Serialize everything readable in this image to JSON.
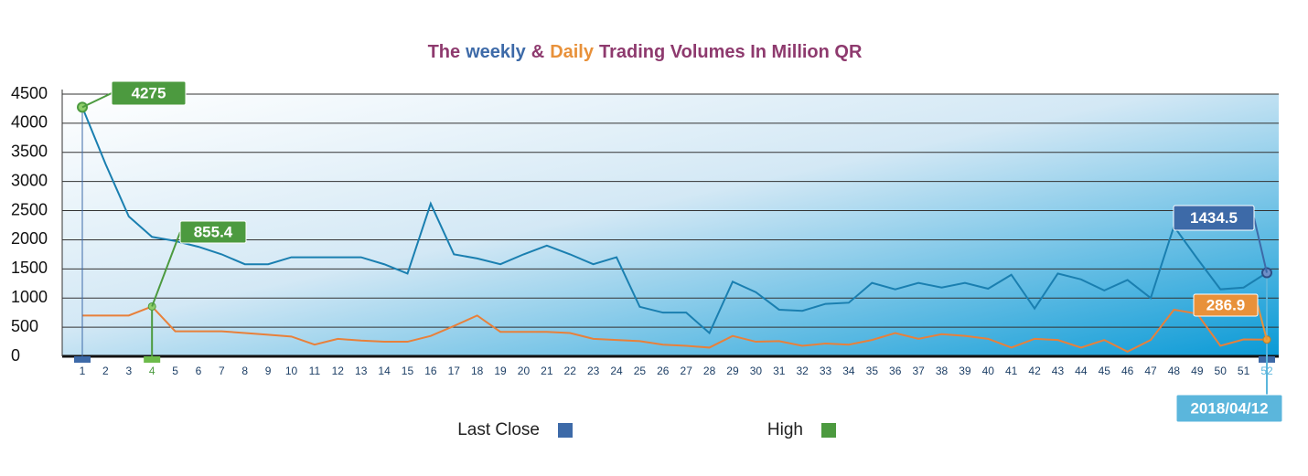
{
  "chart_data": {
    "type": "line",
    "title_parts": [
      {
        "text": "The",
        "color": "#8e3a6e"
      },
      {
        "text": "weekly",
        "color": "#3d6aa8"
      },
      {
        "text": "&",
        "color": "#8e3a6e"
      },
      {
        "text": "Daily",
        "color": "#e8913a"
      },
      {
        "text": "Trading Volumes In Million QR",
        "color": "#8e3a6e"
      }
    ],
    "categories": [
      "1",
      "2",
      "3",
      "4",
      "5",
      "6",
      "7",
      "8",
      "9",
      "10",
      "11",
      "12",
      "13",
      "14",
      "15",
      "16",
      "17",
      "18",
      "19",
      "20",
      "21",
      "22",
      "23",
      "24",
      "25",
      "26",
      "27",
      "28",
      "29",
      "30",
      "31",
      "32",
      "33",
      "34",
      "35",
      "36",
      "37",
      "38",
      "39",
      "40",
      "41",
      "42",
      "43",
      "44",
      "45",
      "46",
      "47",
      "48",
      "49",
      "50",
      "51",
      "52"
    ],
    "series": [
      {
        "color": "#1a7fb0",
        "values": [
          4275,
          3300,
          2400,
          2050,
          1980,
          1880,
          1750,
          1580,
          1580,
          1700,
          1700,
          1700,
          1700,
          1580,
          1420,
          2620,
          1750,
          1680,
          1580,
          1750,
          1900,
          1750,
          1580,
          1700,
          850,
          750,
          750,
          400,
          1280,
          1100,
          800,
          780,
          900,
          920,
          1260,
          1150,
          1260,
          1180,
          1260,
          1160,
          1400,
          820,
          1420,
          1320,
          1130,
          1310,
          1000,
          2230,
          1680,
          1150,
          1180,
          1434.5
        ]
      },
      {
        "color": "#e8803a",
        "values": [
          700,
          700,
          700,
          855.4,
          430,
          430,
          430,
          400,
          370,
          340,
          200,
          300,
          270,
          250,
          250,
          350,
          520,
          700,
          420,
          420,
          420,
          400,
          300,
          280,
          260,
          200,
          180,
          150,
          350,
          250,
          260,
          180,
          220,
          200,
          280,
          400,
          300,
          380,
          350,
          300,
          150,
          300,
          280,
          150,
          280,
          80,
          280,
          800,
          730,
          180,
          290,
          286.9
        ]
      }
    ],
    "ylim": [
      0,
      4500
    ],
    "yticks": [
      0,
      500,
      1000,
      1500,
      2000,
      2500,
      3000,
      3500,
      4000,
      4500
    ],
    "grid": true,
    "annotations": [
      "4275",
      "855.4",
      "1434.5",
      "286.9",
      "2018/04/12"
    ],
    "legend": [
      {
        "name": "Last Close",
        "color": "#3d6aa8"
      },
      {
        "name": "High",
        "color": "#4c9a3f"
      }
    ]
  }
}
